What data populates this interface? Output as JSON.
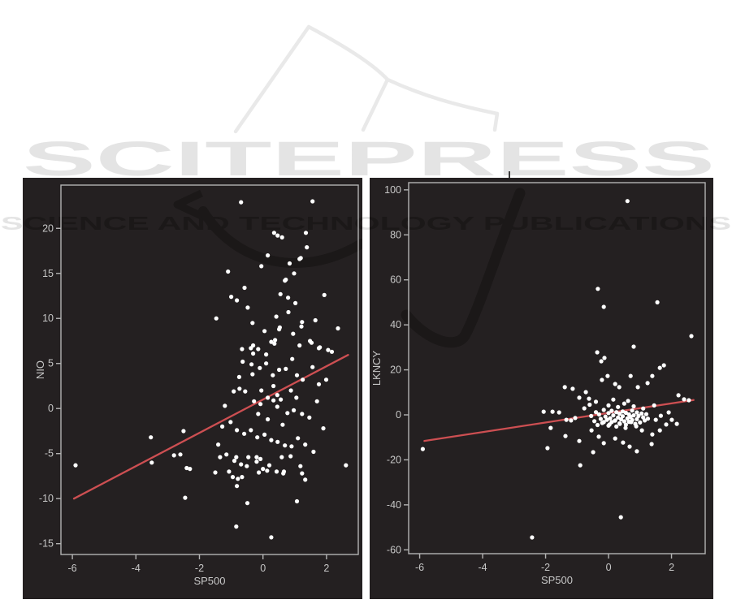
{
  "watermark": {
    "brand": "SCITEPRESS",
    "tagline": "SCIENCE AND TECHNOLOGY PUBLICATIONS",
    "light_color": "#e4e4e4",
    "book_color": "#e9e9e9",
    "dark_color": "#1b1818"
  },
  "colors": {
    "figure_background": "#242021",
    "panel_border": "#b3b3b3",
    "tick_text": "#c7c7c7",
    "point": "#ffffff",
    "regression_line": "#cd4f52"
  },
  "chart_data": [
    {
      "type": "scatter",
      "title": "",
      "xlabel": "SP500",
      "ylabel": "NIO",
      "xlim": [
        -6.36,
        3.0
      ],
      "ylim": [
        -16.2,
        24.8
      ],
      "x_ticks": [
        -6,
        -4,
        -2,
        0,
        2
      ],
      "y_ticks": [
        20,
        15,
        10,
        5,
        0,
        -5,
        -10,
        -15
      ],
      "grid": false,
      "legend": "none",
      "regression_line": {
        "x1": -5.95,
        "y1": -10.0,
        "x2": 2.68,
        "y2": 5.95
      },
      "points": [
        [
          -0.69,
          22.9
        ],
        [
          1.56,
          23.0
        ],
        [
          0.35,
          19.5
        ],
        [
          1.35,
          19.5
        ],
        [
          0.46,
          19.2
        ],
        [
          0.6,
          19.0
        ],
        [
          1.38,
          17.9
        ],
        [
          0.15,
          17.0
        ],
        [
          1.19,
          16.7
        ],
        [
          1.15,
          16.6
        ],
        [
          0.84,
          16.1
        ],
        [
          -0.05,
          15.8
        ],
        [
          -1.1,
          15.2
        ],
        [
          0.98,
          15.0
        ],
        [
          0.72,
          14.3
        ],
        [
          0.69,
          14.2
        ],
        [
          -0.58,
          13.4
        ],
        [
          0.55,
          12.7
        ],
        [
          1.93,
          12.6
        ],
        [
          -1.0,
          12.4
        ],
        [
          0.79,
          12.3
        ],
        [
          -0.82,
          12.0
        ],
        [
          1.02,
          11.7
        ],
        [
          -0.48,
          11.2
        ],
        [
          0.8,
          10.7
        ],
        [
          0.42,
          10.2
        ],
        [
          -1.47,
          10.0
        ],
        [
          1.65,
          9.8
        ],
        [
          1.23,
          9.6
        ],
        [
          -0.33,
          9.5
        ],
        [
          1.21,
          9.1
        ],
        [
          0.53,
          9.0
        ],
        [
          2.36,
          8.9
        ],
        [
          0.51,
          8.8
        ],
        [
          0.05,
          8.6
        ],
        [
          0.95,
          8.3
        ],
        [
          0.38,
          7.6
        ],
        [
          1.48,
          7.5
        ],
        [
          0.26,
          7.4
        ],
        [
          1.53,
          7.3
        ],
        [
          0.36,
          7.2
        ],
        [
          1.15,
          7.0
        ],
        [
          -0.31,
          7.0
        ],
        [
          1.79,
          6.8
        ],
        [
          -0.38,
          6.7
        ],
        [
          1.76,
          6.7
        ],
        [
          -0.66,
          6.6
        ],
        [
          -0.15,
          6.6
        ],
        [
          2.05,
          6.5
        ],
        [
          2.17,
          6.3
        ],
        [
          -0.31,
          6.1
        ],
        [
          0.1,
          6.0
        ],
        [
          0.92,
          5.5
        ],
        [
          -0.64,
          5.2
        ],
        [
          0.1,
          5.0
        ],
        [
          -0.36,
          4.9
        ],
        [
          1.56,
          4.6
        ],
        [
          -0.1,
          4.5
        ],
        [
          0.72,
          4.4
        ],
        [
          0.51,
          4.3
        ],
        [
          -0.33,
          3.8
        ],
        [
          0.31,
          3.7
        ],
        [
          1.07,
          3.7
        ],
        [
          -0.75,
          3.5
        ],
        [
          1.25,
          3.2
        ],
        [
          1.99,
          3.2
        ],
        [
          0.33,
          2.5
        ],
        [
          1.76,
          2.7
        ],
        [
          -0.74,
          2.2
        ],
        [
          -0.05,
          2.0
        ],
        [
          0.88,
          2.0
        ],
        [
          -0.92,
          1.9
        ],
        [
          -0.56,
          1.9
        ],
        [
          0.45,
          1.5
        ],
        [
          0.15,
          1.2
        ],
        [
          1.05,
          1.2
        ],
        [
          0.56,
          1.0
        ],
        [
          0.33,
          0.9
        ],
        [
          -0.28,
          0.8
        ],
        [
          1.7,
          0.8
        ],
        [
          -0.08,
          0.5
        ],
        [
          -1.2,
          0.3
        ],
        [
          0.45,
          0.2
        ],
        [
          0.97,
          -0.2
        ],
        [
          0.77,
          -0.5
        ],
        [
          1.23,
          -0.6
        ],
        [
          -0.15,
          -0.6
        ],
        [
          1.46,
          -1.0
        ],
        [
          0.15,
          -1.2
        ],
        [
          -1.02,
          -1.5
        ],
        [
          0.62,
          -1.8
        ],
        [
          -1.28,
          -2.0
        ],
        [
          1.9,
          -2.2
        ],
        [
          -0.82,
          -2.4
        ],
        [
          -0.38,
          -2.4
        ],
        [
          -2.5,
          -2.5
        ],
        [
          -0.59,
          -2.8
        ],
        [
          0.05,
          -2.9
        ],
        [
          -0.18,
          -3.2
        ],
        [
          -3.53,
          -3.2
        ],
        [
          1.1,
          -3.3
        ],
        [
          0.26,
          -3.5
        ],
        [
          0.46,
          -3.7
        ],
        [
          -1.41,
          -4.0
        ],
        [
          1.33,
          -4.0
        ],
        [
          0.69,
          -4.1
        ],
        [
          0.9,
          -4.2
        ],
        [
          1.59,
          -4.8
        ],
        [
          -2.8,
          -5.2
        ],
        [
          -2.6,
          -5.1
        ],
        [
          -1.15,
          -5.1
        ],
        [
          0.87,
          -5.3
        ],
        [
          -1.35,
          -5.4
        ],
        [
          -0.84,
          -5.4
        ],
        [
          -0.46,
          -5.4
        ],
        [
          -0.2,
          -5.4
        ],
        [
          0.59,
          -5.4
        ],
        [
          -0.08,
          -5.6
        ],
        [
          -0.9,
          -5.8
        ],
        [
          -0.2,
          -5.9
        ],
        [
          -3.5,
          -6.0
        ],
        [
          -0.69,
          -6.2
        ],
        [
          -5.9,
          -6.3
        ],
        [
          0.2,
          -6.3
        ],
        [
          2.61,
          -6.3
        ],
        [
          1.18,
          -6.4
        ],
        [
          -0.51,
          -6.4
        ],
        [
          -2.4,
          -6.6
        ],
        [
          -2.3,
          -6.7
        ],
        [
          0.0,
          -6.7
        ],
        [
          0.13,
          -6.9
        ],
        [
          -1.07,
          -7.0
        ],
        [
          0.66,
          -7.0
        ],
        [
          -1.5,
          -7.1
        ],
        [
          -0.13,
          -7.1
        ],
        [
          0.43,
          -7.0
        ],
        [
          0.64,
          -7.2
        ],
        [
          1.23,
          -7.2
        ],
        [
          -0.95,
          -7.6
        ],
        [
          -0.66,
          -7.6
        ],
        [
          -0.79,
          -7.8
        ],
        [
          1.33,
          -7.9
        ],
        [
          -0.82,
          -8.6
        ],
        [
          -2.45,
          -9.9
        ],
        [
          1.07,
          -10.3
        ],
        [
          -0.49,
          -10.5
        ],
        [
          -0.84,
          -13.1
        ],
        [
          0.26,
          -14.3
        ]
      ]
    },
    {
      "type": "scatter",
      "title": "",
      "xlabel": "SP500",
      "ylabel": "LKNCY",
      "xlim": [
        -6.35,
        3.07
      ],
      "ylim": [
        -61.7,
        103.2
      ],
      "x_ticks": [
        -6,
        -4,
        -2,
        0,
        2
      ],
      "y_ticks": [
        100,
        80,
        60,
        40,
        20,
        0,
        -20,
        -40,
        -60
      ],
      "grid": false,
      "legend": "none",
      "regression_line": {
        "x1": -5.85,
        "y1": -11.6,
        "x2": 2.7,
        "y2": 6.6
      },
      "points": [
        [
          0.6,
          95
        ],
        [
          -0.34,
          56
        ],
        [
          1.55,
          50
        ],
        [
          -0.15,
          48
        ],
        [
          2.63,
          35
        ],
        [
          0.8,
          30.3
        ],
        [
          -0.36,
          27.8
        ],
        [
          -0.13,
          25.3
        ],
        [
          -0.23,
          23.8
        ],
        [
          1.76,
          22.0
        ],
        [
          1.63,
          20.9
        ],
        [
          -0.03,
          17.3
        ],
        [
          0.7,
          17.3
        ],
        [
          1.39,
          17.3
        ],
        [
          -0.21,
          15.5
        ],
        [
          1.24,
          14.1
        ],
        [
          0.21,
          13.7
        ],
        [
          -1.39,
          12.3
        ],
        [
          0.34,
          12.3
        ],
        [
          0.93,
          12.3
        ],
        [
          -1.14,
          11.6
        ],
        [
          -0.72,
          10.1
        ],
        [
          2.22,
          8.7
        ],
        [
          -0.93,
          7.6
        ],
        [
          -0.62,
          7.2
        ],
        [
          2.4,
          6.9
        ],
        [
          0.15,
          6.8
        ],
        [
          2.55,
          6.5
        ],
        [
          0.62,
          6.2
        ],
        [
          -0.4,
          5.8
        ],
        [
          0.5,
          5.0
        ],
        [
          -0.6,
          4.5
        ],
        [
          0.0,
          4.2
        ],
        [
          1.45,
          4.2
        ],
        [
          0.8,
          3.8
        ],
        [
          0.3,
          3.5
        ],
        [
          -0.77,
          2.9
        ],
        [
          1.1,
          2.8
        ],
        [
          -0.15,
          2.2
        ],
        [
          0.75,
          1.9
        ],
        [
          0.1,
          1.8
        ],
        [
          0.45,
          1.5
        ],
        [
          -1.78,
          1.4
        ],
        [
          -2.06,
          1.4
        ],
        [
          0.25,
          1.2
        ],
        [
          -0.4,
          1.2
        ],
        [
          -1.57,
          1.1
        ],
        [
          0.9,
          1.1
        ],
        [
          1.91,
          1.1
        ],
        [
          0.55,
          0.9
        ],
        [
          0.0,
          0.8
        ],
        [
          1.05,
          0.6
        ],
        [
          0.35,
          0.5
        ],
        [
          1.2,
          0.3
        ],
        [
          -0.3,
          0.2
        ],
        [
          0.65,
          0.2
        ],
        [
          0.15,
          -0.2
        ],
        [
          0.8,
          -0.2
        ],
        [
          1.66,
          -0.4
        ],
        [
          -0.55,
          -0.5
        ],
        [
          0.95,
          -0.5
        ],
        [
          0.45,
          -0.6
        ],
        [
          -0.1,
          -0.8
        ],
        [
          0.7,
          -0.9
        ],
        [
          1.1,
          -1.1
        ],
        [
          0.3,
          -1.2
        ],
        [
          -1.06,
          -1.4
        ],
        [
          0.05,
          -1.5
        ],
        [
          0.6,
          -1.6
        ],
        [
          1.25,
          -1.7
        ],
        [
          -0.25,
          -1.8
        ],
        [
          0.9,
          -1.9
        ],
        [
          0.4,
          -2.0
        ],
        [
          -1.34,
          -2.2
        ],
        [
          2.01,
          -2.2
        ],
        [
          1.5,
          -2.2
        ],
        [
          -0.05,
          -2.2
        ],
        [
          0.75,
          -2.3
        ],
        [
          -1.19,
          -2.5
        ],
        [
          0.21,
          -2.5
        ],
        [
          1.15,
          -2.5
        ],
        [
          0.2,
          -2.6
        ],
        [
          -0.45,
          -2.8
        ],
        [
          0.5,
          -2.9
        ],
        [
          0.65,
          -3.1
        ],
        [
          -0.15,
          -3.2
        ],
        [
          0.72,
          -3.2
        ],
        [
          0.1,
          -3.2
        ],
        [
          1.0,
          -3.4
        ],
        [
          -0.2,
          -3.6
        ],
        [
          0.35,
          -3.8
        ],
        [
          0.36,
          -4.0
        ],
        [
          2.17,
          -4.0
        ],
        [
          0.85,
          -4.0
        ],
        [
          0.03,
          -4.3
        ],
        [
          1.83,
          -4.3
        ],
        [
          0.55,
          -4.4
        ],
        [
          -0.35,
          -4.5
        ],
        [
          0.0,
          -4.8
        ],
        [
          0.88,
          -5.1
        ],
        [
          0.25,
          -5.2
        ],
        [
          0.54,
          -5.8
        ],
        [
          -1.84,
          -5.8
        ],
        [
          -0.54,
          -6.9
        ],
        [
          1.06,
          -6.9
        ],
        [
          1.63,
          -6.9
        ],
        [
          1.39,
          -8.7
        ],
        [
          -1.37,
          -9.4
        ],
        [
          -0.31,
          -9.7
        ],
        [
          0.21,
          -10.5
        ],
        [
          -0.93,
          -11.6
        ],
        [
          0.46,
          -12.3
        ],
        [
          -0.15,
          -12.6
        ],
        [
          1.37,
          -13.0
        ],
        [
          0.67,
          -14.1
        ],
        [
          -1.94,
          -14.8
        ],
        [
          -5.9,
          -15.2
        ],
        [
          0.9,
          -16.2
        ],
        [
          -0.49,
          -16.6
        ],
        [
          -0.9,
          -22.4
        ],
        [
          0.39,
          -45.5
        ],
        [
          -2.43,
          -54.5
        ]
      ]
    }
  ]
}
